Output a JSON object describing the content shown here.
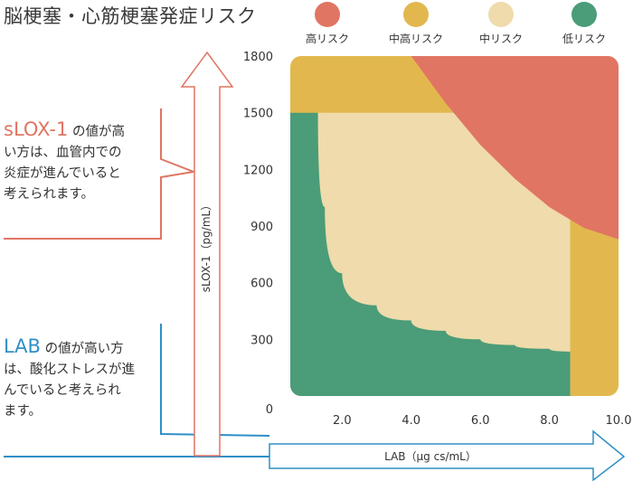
{
  "title": "脳梗塞・心筋梗塞発症リスク",
  "legend": [
    {
      "label": "高リスク",
      "color": "#e07563"
    },
    {
      "label": "中高リスク",
      "color": "#e2b84e"
    },
    {
      "label": "中リスク",
      "color": "#efdbab"
    },
    {
      "label": "低リスク",
      "color": "#4b9c78"
    }
  ],
  "notes": {
    "slox": {
      "keyword": "sLOX-1",
      "text_lines": [
        " の値が高",
        "い方は、血管内での",
        "炎症が進んでいると",
        "考えられます。"
      ]
    },
    "lab": {
      "keyword": "LAB",
      "text_lines": [
        " の値が高い方",
        "は、酸化ストレスが進",
        "んでいると考えられ",
        "ます。"
      ]
    }
  },
  "chart_data": {
    "type": "heatmap",
    "title": "脳梗塞・心筋梗塞発症リスク",
    "xlabel": "LAB（µg cs/mL）",
    "ylabel": "sLOX-1（pg/mL）",
    "x_ticks": [
      "2.0",
      "4.0",
      "6.0",
      "8.0",
      "10.0"
    ],
    "y_ticks": [
      "0",
      "300",
      "600",
      "900",
      "1200",
      "1500",
      "1800"
    ],
    "xlim": [
      0.5,
      10.0
    ],
    "ylim": [
      0,
      1800
    ],
    "regions": [
      {
        "name": "低リスク",
        "color": "#4b9c78"
      },
      {
        "name": "中リスク",
        "color": "#efdbab"
      },
      {
        "name": "中高リスク",
        "color": "#e2b84e"
      },
      {
        "name": "高リスク",
        "color": "#e07563"
      }
    ],
    "boundaries": {
      "low_to_mid": [
        [
          1.3,
          1500
        ],
        [
          1.5,
          1000
        ],
        [
          2.0,
          650
        ],
        [
          3.0,
          480
        ],
        [
          4.0,
          400
        ],
        [
          5.0,
          345
        ],
        [
          6.0,
          300
        ],
        [
          7.0,
          270
        ],
        [
          8.0,
          250
        ],
        [
          8.6,
          235
        ]
      ],
      "mid_top_limit": 1500,
      "mid_right_limit": 8.6,
      "right_band_start_y": 900,
      "high_arc": [
        [
          4.0,
          1800
        ],
        [
          5.0,
          1550
        ],
        [
          6.0,
          1330
        ],
        [
          7.0,
          1150
        ],
        [
          8.0,
          1000
        ],
        [
          9.0,
          890
        ],
        [
          10.0,
          830
        ]
      ]
    },
    "grid": false
  }
}
